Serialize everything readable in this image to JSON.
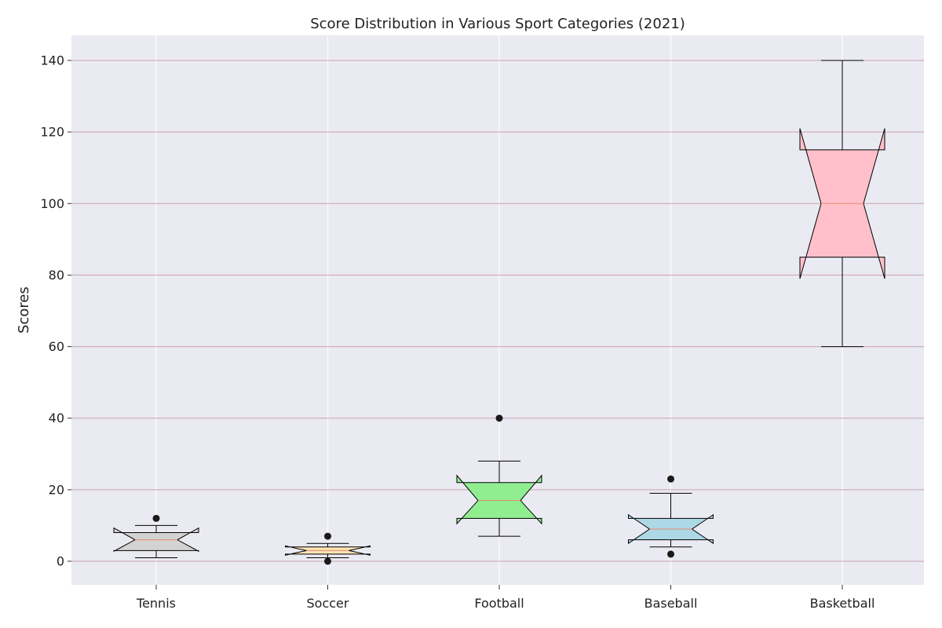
{
  "chart_data": {
    "type": "boxplot",
    "title": "Score Distribution in Various Sport Categories (2021)",
    "xlabel": "",
    "ylabel": "Scores",
    "ylim": [
      -7,
      147
    ],
    "yticks": [
      0,
      20,
      40,
      60,
      80,
      100,
      120,
      140
    ],
    "notched": true,
    "grid": {
      "x": true,
      "y": true,
      "y_color": "#c9a3ac",
      "x_color": "#ffffff"
    },
    "background": "#eaeaf2",
    "categories": [
      "Tennis",
      "Soccer",
      "Football",
      "Baseball",
      "Basketball"
    ],
    "boxes": [
      {
        "name": "Tennis",
        "min": 1,
        "q1": 3,
        "median": 6,
        "q3": 8,
        "max": 10,
        "notch": [
          2.8,
          9.3
        ],
        "outliers": [
          12
        ],
        "color": "#d3d3d3"
      },
      {
        "name": "Soccer",
        "min": 1,
        "q1": 2,
        "median": 3,
        "q3": 4,
        "max": 5,
        "notch": [
          1.7,
          4.3
        ],
        "outliers": [
          7,
          0
        ],
        "color": "#ffe4b5"
      },
      {
        "name": "Football",
        "min": 7,
        "q1": 12,
        "median": 17,
        "q3": 22,
        "max": 28,
        "notch": [
          10.5,
          24
        ],
        "outliers": [
          40
        ],
        "color": "#90ee90"
      },
      {
        "name": "Baseball",
        "min": 4,
        "q1": 6,
        "median": 9,
        "q3": 12,
        "max": 19,
        "notch": [
          5,
          13
        ],
        "outliers": [
          23,
          2
        ],
        "color": "#add8e6"
      },
      {
        "name": "Basketball",
        "min": 60,
        "q1": 85,
        "median": 100,
        "q3": 115,
        "max": 140,
        "notch": [
          79,
          121
        ],
        "outliers": [],
        "color": "#ffc0cb"
      }
    ],
    "median_color": "#e8896a"
  }
}
